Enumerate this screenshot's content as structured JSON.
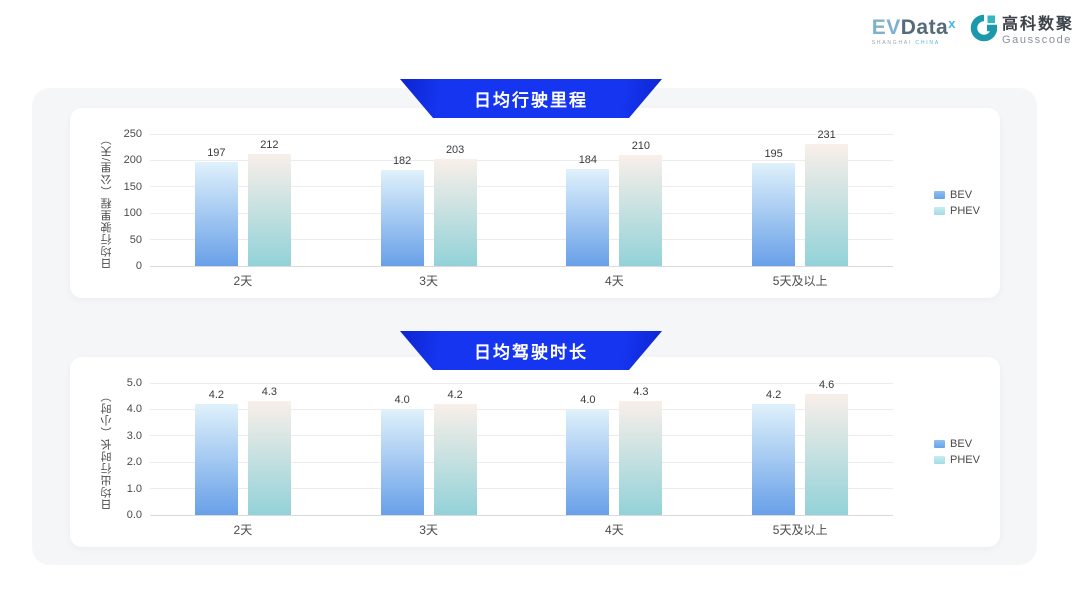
{
  "logo": {
    "evdata_ev": "EV",
    "evdata_data": "Data",
    "evdata_sup": "x",
    "evdata_sub_left": "SHANGHAI",
    "evdata_sub_right": "CHINA",
    "gausscode_cn": "高科数聚",
    "gausscode_en": "Gausscode"
  },
  "colors": {
    "banner_blue": "#1535f0",
    "bev_gradient_top": "#dff1fb",
    "bev_gradient_bottom": "#68a0e8",
    "phev_gradient_top": "#f9efe9",
    "phev_gradient_bottom": "#92d2d8",
    "panel_gray": "#f5f6f8",
    "gausscode_teal": "#1b98ab"
  },
  "chart_data": [
    {
      "type": "bar",
      "title": "日均行驶里程",
      "ylabel": "日均行驶里程（公里/天）",
      "categories": [
        "2天",
        "3天",
        "4天",
        "5天及以上"
      ],
      "series": [
        {
          "name": "BEV",
          "values": [
            197,
            182,
            184,
            195
          ]
        },
        {
          "name": "PHEV",
          "values": [
            212,
            203,
            210,
            231
          ]
        }
      ],
      "ylim": [
        0,
        250
      ],
      "ytick_step": 50,
      "value_format": "int",
      "grid": true,
      "legend_position": "right"
    },
    {
      "type": "bar",
      "title": "日均驾驶时长",
      "ylabel": "日均出行时长（小时）",
      "categories": [
        "2天",
        "3天",
        "4天",
        "5天及以上"
      ],
      "series": [
        {
          "name": "BEV",
          "values": [
            4.2,
            4.0,
            4.0,
            4.2
          ]
        },
        {
          "name": "PHEV",
          "values": [
            4.3,
            4.2,
            4.3,
            4.6
          ]
        }
      ],
      "ylim": [
        0,
        5.0
      ],
      "ytick_step": 1.0,
      "value_format": "1dp",
      "grid": true,
      "legend_position": "right"
    }
  ]
}
